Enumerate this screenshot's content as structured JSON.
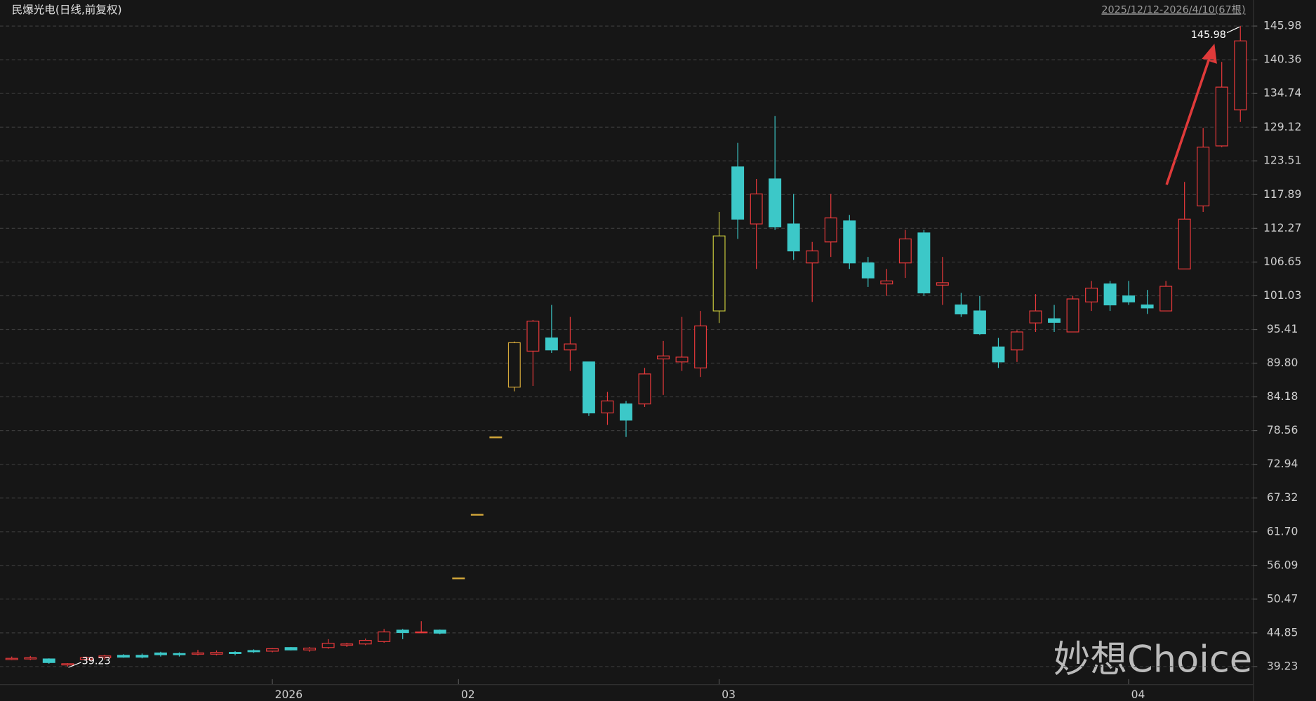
{
  "chart_data": {
    "type": "candlestick",
    "title": "民爆光电(日线,前复权)",
    "subtitle": "2025/12/12-2026/4/10(67根)",
    "watermark": "妙想Choice",
    "categories": [
      null,
      null,
      null,
      null,
      null,
      null,
      null,
      null,
      null,
      null,
      null,
      null,
      null,
      null,
      "2026",
      null,
      null,
      null,
      null,
      null,
      null,
      null,
      null,
      null,
      "02",
      null,
      null,
      null,
      null,
      null,
      null,
      null,
      null,
      null,
      null,
      null,
      null,
      null,
      "03",
      null,
      null,
      null,
      null,
      null,
      null,
      null,
      null,
      null,
      null,
      null,
      null,
      null,
      null,
      null,
      null,
      null,
      null,
      null,
      null,
      null,
      "04",
      null,
      null,
      null,
      null,
      null,
      null
    ],
    "open": [
      40.4,
      40.5,
      40.5,
      39.5,
      40.4,
      40.7,
      41.1,
      41.1,
      41.5,
      41.4,
      41.3,
      41.3,
      41.6,
      41.9,
      41.8,
      42.4,
      42.0,
      42.4,
      42.8,
      43.0,
      43.4,
      45.3,
      44.9,
      45.3,
      54.0,
      64.6,
      77.5,
      85.8,
      91.8,
      94.0,
      92.0,
      90.0,
      81.5,
      83.0,
      83.0,
      90.5,
      90.0,
      89.0,
      98.5,
      122.5,
      113.0,
      120.5,
      113.0,
      106.5,
      110.0,
      113.5,
      106.5,
      103.0,
      106.5,
      111.5,
      102.8,
      99.5,
      98.5,
      92.5,
      92.0,
      96.5,
      97.2,
      95.0,
      100.0,
      103.0,
      101.0,
      99.5,
      98.5,
      105.5,
      116.0,
      126.0,
      132.0
    ],
    "high": [
      40.9,
      41.0,
      40.6,
      39.8,
      40.9,
      41.2,
      41.3,
      41.4,
      41.7,
      41.6,
      42.0,
      41.9,
      41.8,
      42.1,
      42.3,
      42.5,
      42.5,
      43.8,
      43.2,
      43.9,
      45.5,
      45.5,
      46.8,
      45.4,
      54.0,
      64.6,
      77.5,
      93.4,
      97.0,
      99.5,
      97.5,
      90.0,
      85.0,
      83.5,
      89.0,
      93.5,
      97.5,
      98.5,
      115.0,
      126.5,
      120.5,
      131.0,
      118.0,
      110.0,
      118.0,
      114.5,
      107.5,
      105.5,
      112.0,
      112.0,
      107.5,
      101.5,
      101.0,
      94.0,
      95.3,
      101.3,
      99.5,
      101.0,
      103.5,
      103.5,
      103.5,
      102.0,
      103.5,
      120.0,
      129.0,
      140.0,
      145.98
    ],
    "low": [
      40.3,
      40.3,
      39.7,
      39.23,
      40.2,
      40.4,
      40.7,
      40.6,
      40.9,
      40.9,
      41.1,
      41.1,
      41.1,
      41.5,
      41.6,
      41.9,
      41.7,
      42.2,
      42.5,
      42.8,
      43.2,
      43.8,
      44.8,
      44.6,
      54.0,
      64.6,
      77.5,
      85.1,
      86.0,
      91.5,
      88.5,
      81.0,
      79.5,
      77.5,
      82.5,
      84.5,
      88.5,
      87.5,
      96.5,
      110.5,
      105.5,
      112.0,
      107.0,
      100.0,
      107.5,
      105.5,
      102.5,
      101.0,
      104.0,
      101.0,
      99.5,
      97.5,
      94.5,
      89.0,
      90.0,
      95.0,
      95.0,
      95.0,
      98.5,
      98.5,
      99.5,
      98.0,
      98.5,
      105.5,
      115.0,
      125.8,
      130.0
    ],
    "close": [
      40.6,
      40.7,
      39.9,
      39.7,
      40.7,
      41.0,
      40.8,
      40.8,
      41.2,
      41.2,
      41.5,
      41.6,
      41.4,
      41.7,
      42.2,
      42.0,
      42.3,
      43.1,
      43.0,
      43.6,
      45.0,
      44.9,
      45.0,
      44.8,
      54.0,
      64.6,
      77.5,
      93.2,
      96.8,
      92.0,
      93.0,
      81.5,
      83.5,
      80.3,
      88.0,
      91.0,
      90.8,
      96.0,
      111.0,
      113.8,
      118.0,
      112.5,
      108.5,
      108.5,
      114.0,
      106.5,
      104.0,
      103.5,
      110.5,
      101.5,
      103.2,
      98.0,
      94.7,
      90.0,
      95.0,
      98.5,
      96.6,
      100.5,
      102.3,
      99.5,
      100.0,
      99.0,
      102.6,
      113.8,
      125.8,
      135.8,
      143.5
    ],
    "colors": [
      "#e8393b",
      "#e8393b",
      "#3cc8c8",
      "#e8393b",
      "#e8393b",
      "#e8393b",
      "#3cc8c8",
      "#3cc8c8",
      "#3cc8c8",
      "#3cc8c8",
      "#e8393b",
      "#e8393b",
      "#3cc8c8",
      "#3cc8c8",
      "#e8393b",
      "#3cc8c8",
      "#e8393b",
      "#e8393b",
      "#e8393b",
      "#e8393b",
      "#e8393b",
      "#3cc8c8",
      "#e8393b",
      "#3cc8c8",
      "#d4a83a",
      "#d4a83a",
      "#d4a83a",
      "#d4a83a",
      "#e8393b",
      "#3cc8c8",
      "#e8393b",
      "#3cc8c8",
      "#e8393b",
      "#3cc8c8",
      "#e8393b",
      "#e8393b",
      "#e8393b",
      "#e8393b",
      "#c8c83c",
      "#3cc8c8",
      "#e8393b",
      "#3cc8c8",
      "#3cc8c8",
      "#e8393b",
      "#e8393b",
      "#3cc8c8",
      "#3cc8c8",
      "#e8393b",
      "#e8393b",
      "#3cc8c8",
      "#e8393b",
      "#3cc8c8",
      "#3cc8c8",
      "#3cc8c8",
      "#e8393b",
      "#e8393b",
      "#3cc8c8",
      "#e8393b",
      "#e8393b",
      "#3cc8c8",
      "#3cc8c8",
      "#3cc8c8",
      "#e8393b",
      "#e8393b",
      "#e8393b",
      "#e8393b",
      "#e8393b"
    ],
    "annotations": [
      {
        "text": "145.98",
        "index": 66
      },
      {
        "text": "39.23",
        "index": 3
      }
    ],
    "ylim": [
      36.29,
      147.52
    ],
    "yticks": [
      39.23,
      44.85,
      50.47,
      56.09,
      {
        "value": 61.7,
        "label": "61.70"
      },
      67.32,
      72.94,
      78.56,
      84.18,
      {
        "value": 89.8,
        "label": "89.80"
      },
      95.41,
      101.03,
      106.65,
      112.27,
      117.89,
      123.51,
      129.12,
      134.74,
      140.36,
      145.98
    ],
    "grid": true
  }
}
